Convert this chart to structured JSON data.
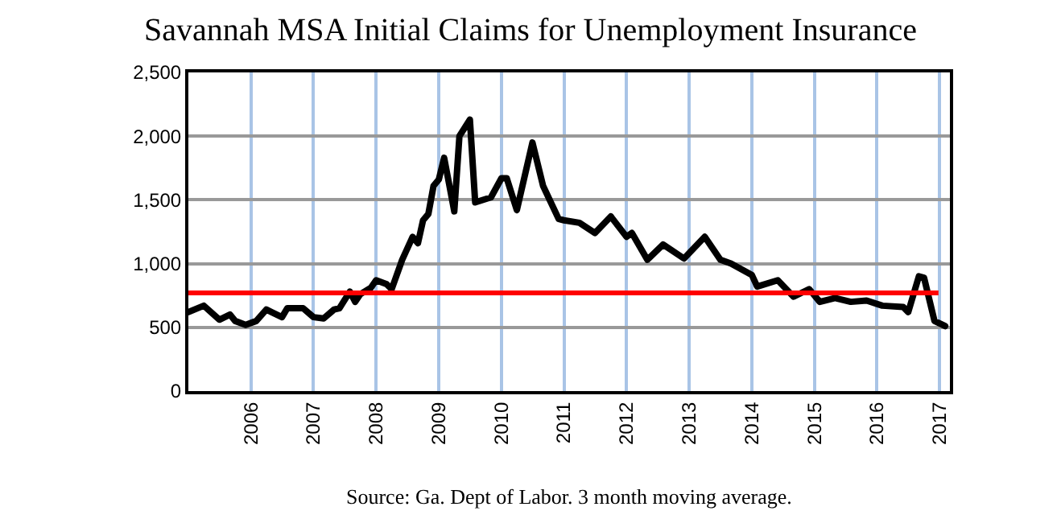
{
  "chart_data": {
    "type": "line",
    "title": "Savannah MSA Initial Claims for Unemployment Insurance",
    "annotations": [
      "Source: Ga. Dept of Labor. 3 month moving average."
    ],
    "x": [
      "2005-01",
      "2005-04",
      "2005-07",
      "2005-09",
      "2005-10",
      "2005-12",
      "2006-02",
      "2006-04",
      "2006-05",
      "2006-07",
      "2006-08",
      "2006-11",
      "2007-01",
      "2007-03",
      "2007-05",
      "2007-06",
      "2007-08",
      "2007-09",
      "2007-10",
      "2007-12",
      "2008-01",
      "2008-03",
      "2008-04",
      "2008-06",
      "2008-08",
      "2008-09",
      "2008-10",
      "2008-11",
      "2008-12",
      "2009-01",
      "2009-02",
      "2009-04",
      "2009-05",
      "2009-07",
      "2009-08",
      "2009-11",
      "2010-01",
      "2010-02",
      "2010-04",
      "2010-07",
      "2010-09",
      "2010-12",
      "2011-01",
      "2011-04",
      "2011-07",
      "2011-10",
      "2012-01",
      "2012-02",
      "2012-05",
      "2012-08",
      "2012-12",
      "2013-04",
      "2013-07",
      "2013-09",
      "2014-01",
      "2014-02",
      "2014-06",
      "2014-09",
      "2014-12",
      "2015-02",
      "2015-05",
      "2015-08",
      "2015-11",
      "2016-02",
      "2016-06",
      "2016-07",
      "2016-09",
      "2016-10",
      "2016-12",
      "2017-02"
    ],
    "series": [
      {
        "color": "#000000",
        "values": [
          620,
          670,
          560,
          600,
          550,
          520,
          550,
          640,
          620,
          580,
          650,
          650,
          580,
          570,
          640,
          650,
          780,
          700,
          760,
          810,
          870,
          840,
          800,
          1030,
          1210,
          1160,
          1340,
          1390,
          1610,
          1660,
          1830,
          1410,
          2000,
          2130,
          1480,
          1520,
          1670,
          1670,
          1420,
          1950,
          1610,
          1350,
          1340,
          1320,
          1240,
          1370,
          1210,
          1240,
          1030,
          1150,
          1040,
          1210,
          1030,
          1000,
          910,
          820,
          870,
          740,
          800,
          700,
          730,
          700,
          710,
          670,
          660,
          620,
          900,
          890,
          550,
          510
        ]
      }
    ],
    "ref_lines": [
      {
        "axis": "y",
        "value": 770,
        "color": "#ff0000"
      }
    ],
    "xlim": [
      "2005-01",
      "2017-03"
    ],
    "xticks": [
      {
        "value": "2006",
        "label": "2006"
      },
      {
        "value": "2007",
        "label": "2007"
      },
      {
        "value": "2008",
        "label": "2008"
      },
      {
        "value": "2009",
        "label": "2009"
      },
      {
        "value": "2010",
        "label": "2010"
      },
      {
        "value": "2011",
        "label": "2011"
      },
      {
        "value": "2012",
        "label": "2012"
      },
      {
        "value": "2013",
        "label": "2013"
      },
      {
        "value": "2014",
        "label": "2014"
      },
      {
        "value": "2015",
        "label": "2015"
      },
      {
        "value": "2016",
        "label": "2016"
      },
      {
        "value": "2017",
        "label": "2017"
      }
    ],
    "ylim": [
      0,
      2500
    ],
    "yticks": [
      {
        "value": 0,
        "label": "0"
      },
      {
        "value": 500,
        "label": "500"
      },
      {
        "value": 1000,
        "label": "1,000"
      },
      {
        "value": 1500,
        "label": "1,500"
      },
      {
        "value": 2000,
        "label": "2,000"
      },
      {
        "value": 2500,
        "label": "2,500"
      }
    ],
    "grid": true,
    "marker": "none",
    "line_style": "solid"
  }
}
